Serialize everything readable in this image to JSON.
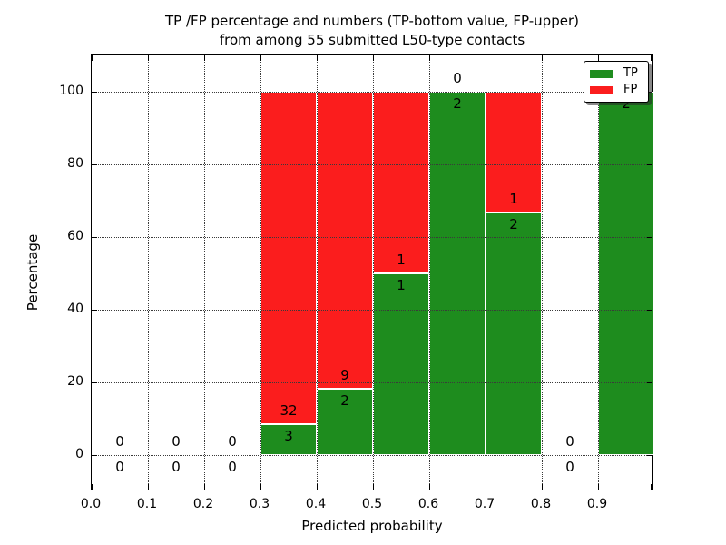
{
  "title": {
    "line1": "TP /FP percentage and numbers (TP-bottom value, FP-upper)",
    "line2": "from among 55 submitted L50-type contacts"
  },
  "axes": {
    "xlabel": "Predicted probability",
    "ylabel": "Percentage",
    "x_tick_labels": [
      "0.0",
      "0.1",
      "0.2",
      "0.3",
      "0.4",
      "0.5",
      "0.6",
      "0.7",
      "0.8",
      "0.9"
    ],
    "y_tick_labels": [
      "0",
      "20",
      "40",
      "60",
      "80",
      "100"
    ],
    "y_tick_values": [
      0,
      20,
      40,
      60,
      80,
      100
    ]
  },
  "legend": {
    "items": [
      {
        "label": "TP",
        "color": "#1e8c1e"
      },
      {
        "label": "FP",
        "color": "#fb1d1d"
      }
    ]
  },
  "colors": {
    "tp": "#1e8c1e",
    "fp": "#fb1d1d",
    "grid": "#3a3a3a",
    "background": "#ffffff"
  },
  "chart_data": {
    "type": "bar",
    "stacked": true,
    "title": "TP /FP percentage and numbers (TP-bottom value, FP-upper) from among 55 submitted L50-type contacts",
    "xlabel": "Predicted probability",
    "ylabel": "Percentage",
    "xlim": [
      0.0,
      1.0
    ],
    "ylim": [
      -10,
      110
    ],
    "grid": true,
    "legend_position": "upper right",
    "total_contacts": 55,
    "bin_width": 0.1,
    "series_names": [
      "TP",
      "FP"
    ],
    "bins": [
      {
        "x_start": 0.0,
        "x_end": 0.1,
        "tp_count": 0,
        "fp_count": 0,
        "tp_pct": 0,
        "fp_pct": 0
      },
      {
        "x_start": 0.1,
        "x_end": 0.2,
        "tp_count": 0,
        "fp_count": 0,
        "tp_pct": 0,
        "fp_pct": 0
      },
      {
        "x_start": 0.2,
        "x_end": 0.3,
        "tp_count": 0,
        "fp_count": 0,
        "tp_pct": 0,
        "fp_pct": 0
      },
      {
        "x_start": 0.3,
        "x_end": 0.4,
        "tp_count": 3,
        "fp_count": 32,
        "tp_pct": 8.57,
        "fp_pct": 91.43
      },
      {
        "x_start": 0.4,
        "x_end": 0.5,
        "tp_count": 2,
        "fp_count": 9,
        "tp_pct": 18.18,
        "fp_pct": 81.82
      },
      {
        "x_start": 0.5,
        "x_end": 0.6,
        "tp_count": 1,
        "fp_count": 1,
        "tp_pct": 50.0,
        "fp_pct": 50.0
      },
      {
        "x_start": 0.6,
        "x_end": 0.7,
        "tp_count": 2,
        "fp_count": 0,
        "tp_pct": 100.0,
        "fp_pct": 0
      },
      {
        "x_start": 0.7,
        "x_end": 0.8,
        "tp_count": 2,
        "fp_count": 1,
        "tp_pct": 66.67,
        "fp_pct": 33.33
      },
      {
        "x_start": 0.8,
        "x_end": 0.9,
        "tp_count": 0,
        "fp_count": 0,
        "tp_pct": 0,
        "fp_pct": 0
      },
      {
        "x_start": 0.9,
        "x_end": 1.0,
        "tp_count": 2,
        "fp_count": 0,
        "tp_pct": 100.0,
        "fp_pct": 0
      }
    ]
  }
}
